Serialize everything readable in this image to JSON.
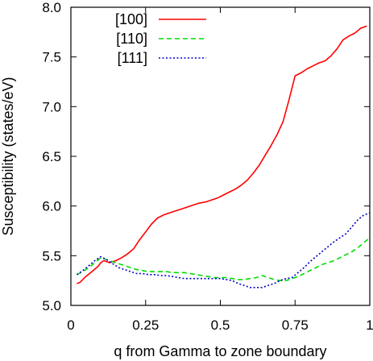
{
  "chart_data": {
    "type": "line",
    "title": "",
    "xlabel": "q from Gamma to zone boundary",
    "ylabel": "Susceptibility (states/eV)",
    "xlim": [
      0,
      1
    ],
    "ylim": [
      5.0,
      8.0
    ],
    "xticks": [
      0,
      0.25,
      0.5,
      0.75,
      1
    ],
    "xtick_labels": [
      "0",
      "0.25",
      "0.5",
      "0.75",
      "1"
    ],
    "yticks": [
      5.0,
      5.5,
      6.0,
      6.5,
      7.0,
      7.5,
      8.0
    ],
    "ytick_labels": [
      "5.0",
      "5.5",
      "6.0",
      "6.5",
      "7.0",
      "7.5",
      "8.0"
    ],
    "grid": false,
    "legend_position": "top-left",
    "series": [
      {
        "name": "[100]",
        "color": "#ff0000",
        "dash": "solid",
        "x": [
          0.02,
          0.03,
          0.05,
          0.07,
          0.09,
          0.1,
          0.11,
          0.13,
          0.15,
          0.17,
          0.19,
          0.21,
          0.23,
          0.25,
          0.27,
          0.29,
          0.31,
          0.33,
          0.35,
          0.37,
          0.39,
          0.41,
          0.43,
          0.45,
          0.47,
          0.49,
          0.51,
          0.53,
          0.55,
          0.57,
          0.59,
          0.61,
          0.63,
          0.65,
          0.67,
          0.69,
          0.71,
          0.73,
          0.75,
          0.77,
          0.79,
          0.81,
          0.83,
          0.85,
          0.87,
          0.89,
          0.91,
          0.93,
          0.95,
          0.97,
          0.99
        ],
        "y": [
          5.22,
          5.23,
          5.29,
          5.34,
          5.39,
          5.43,
          5.45,
          5.43,
          5.45,
          5.48,
          5.52,
          5.57,
          5.66,
          5.74,
          5.82,
          5.88,
          5.91,
          5.93,
          5.95,
          5.97,
          5.99,
          6.01,
          6.03,
          6.04,
          6.06,
          6.08,
          6.11,
          6.14,
          6.17,
          6.21,
          6.26,
          6.33,
          6.41,
          6.51,
          6.61,
          6.72,
          6.85,
          7.07,
          7.31,
          7.34,
          7.38,
          7.41,
          7.44,
          7.46,
          7.51,
          7.58,
          7.67,
          7.71,
          7.74,
          7.79,
          7.81
        ]
      },
      {
        "name": "[110]",
        "color": "#00dd00",
        "dash": "dashed",
        "x": [
          0.02,
          0.04,
          0.06,
          0.08,
          0.1,
          0.12,
          0.14,
          0.16,
          0.18,
          0.2,
          0.22,
          0.24,
          0.26,
          0.28,
          0.3,
          0.32,
          0.34,
          0.36,
          0.38,
          0.4,
          0.42,
          0.44,
          0.46,
          0.48,
          0.5,
          0.52,
          0.54,
          0.56,
          0.58,
          0.6,
          0.62,
          0.64,
          0.66,
          0.68,
          0.7,
          0.72,
          0.74,
          0.76,
          0.78,
          0.8,
          0.82,
          0.84,
          0.86,
          0.88,
          0.9,
          0.92,
          0.94,
          0.96,
          0.98,
          1.0
        ],
        "y": [
          5.31,
          5.34,
          5.38,
          5.43,
          5.48,
          5.46,
          5.44,
          5.42,
          5.4,
          5.38,
          5.36,
          5.35,
          5.34,
          5.34,
          5.34,
          5.34,
          5.33,
          5.33,
          5.33,
          5.32,
          5.31,
          5.3,
          5.29,
          5.28,
          5.28,
          5.28,
          5.27,
          5.26,
          5.26,
          5.27,
          5.28,
          5.3,
          5.28,
          5.26,
          5.25,
          5.25,
          5.27,
          5.29,
          5.32,
          5.35,
          5.38,
          5.41,
          5.43,
          5.45,
          5.48,
          5.51,
          5.54,
          5.58,
          5.63,
          5.68
        ]
      },
      {
        "name": "[111]",
        "color": "#0000cc",
        "dash": "dotted",
        "x": [
          0.02,
          0.04,
          0.06,
          0.08,
          0.1,
          0.12,
          0.14,
          0.16,
          0.18,
          0.2,
          0.22,
          0.24,
          0.26,
          0.28,
          0.3,
          0.32,
          0.34,
          0.36,
          0.38,
          0.4,
          0.42,
          0.44,
          0.46,
          0.48,
          0.5,
          0.52,
          0.54,
          0.56,
          0.58,
          0.6,
          0.62,
          0.64,
          0.66,
          0.68,
          0.7,
          0.72,
          0.74,
          0.76,
          0.78,
          0.8,
          0.82,
          0.84,
          0.86,
          0.88,
          0.9,
          0.92,
          0.94,
          0.96,
          0.98,
          1.0
        ],
        "y": [
          5.31,
          5.35,
          5.4,
          5.45,
          5.49,
          5.46,
          5.42,
          5.38,
          5.36,
          5.34,
          5.32,
          5.32,
          5.31,
          5.31,
          5.3,
          5.3,
          5.29,
          5.28,
          5.27,
          5.27,
          5.27,
          5.27,
          5.27,
          5.27,
          5.27,
          5.26,
          5.25,
          5.22,
          5.2,
          5.18,
          5.18,
          5.18,
          5.2,
          5.22,
          5.25,
          5.27,
          5.28,
          5.33,
          5.38,
          5.44,
          5.49,
          5.54,
          5.59,
          5.64,
          5.68,
          5.72,
          5.79,
          5.86,
          5.91,
          5.93
        ]
      }
    ]
  }
}
